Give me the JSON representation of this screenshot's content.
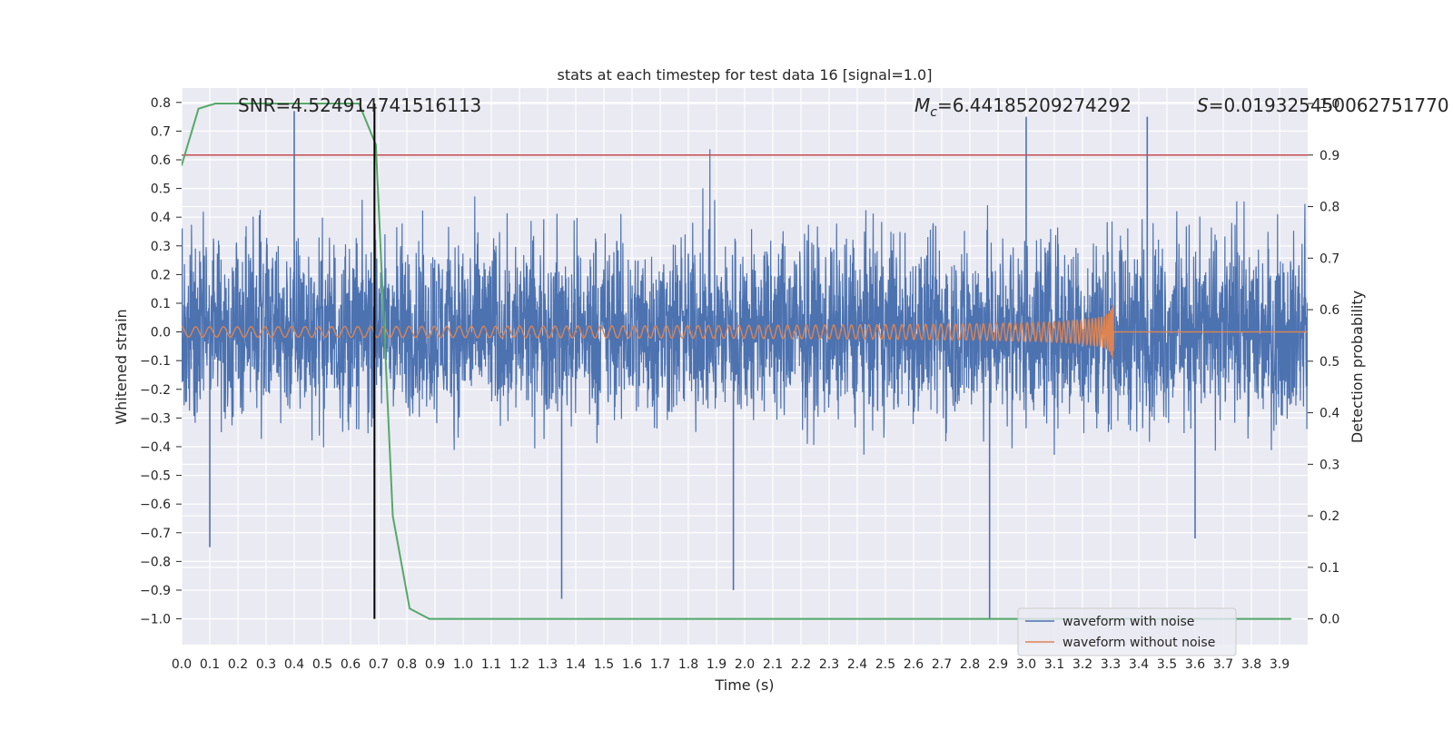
{
  "chart_data": {
    "type": "line",
    "title": "stats at each timestep for test data 16 [signal=1.0]",
    "xlabel": "Time (s)",
    "ylabel_left": "Whitened strain",
    "ylabel_right": "Detection probability",
    "xlim": [
      0.0,
      4.0
    ],
    "ylim_left": [
      -1.09,
      0.85
    ],
    "ylim_right": [
      -0.05,
      1.03
    ],
    "x_ticks": [
      "0.0",
      "0.1",
      "0.2",
      "0.3",
      "0.4",
      "0.5",
      "0.6",
      "0.7",
      "0.8",
      "0.9",
      "1.0",
      "1.1",
      "1.2",
      "1.3",
      "1.4",
      "1.5",
      "1.6",
      "1.7",
      "1.8",
      "1.9",
      "2.0",
      "2.1",
      "2.2",
      "2.3",
      "2.4",
      "2.5",
      "2.6",
      "2.7",
      "2.8",
      "2.9",
      "3.0",
      "3.1",
      "3.2",
      "3.3",
      "3.4",
      "3.5",
      "3.6",
      "3.7",
      "3.8",
      "3.9"
    ],
    "y_ticks_left": [
      "0.8",
      "0.7",
      "0.6",
      "0.5",
      "0.4",
      "0.3",
      "0.2",
      "0.1",
      "0.0",
      "−0.1",
      "−0.2",
      "−0.3",
      "−0.4",
      "−0.5",
      "−0.6",
      "−0.7",
      "−0.8",
      "−0.9",
      "−1.0"
    ],
    "y_ticks_right": [
      "1.0",
      "0.9",
      "0.8",
      "0.7",
      "0.6",
      "0.5",
      "0.4",
      "0.3",
      "0.2",
      "0.1",
      "0.0"
    ],
    "annotations": {
      "snr": "SNR=4.524914741516113",
      "mc_symbol": "M",
      "mc_sub": "c",
      "mc_value": "=6.44185209274292",
      "s_symbol": "S",
      "s_value": "=0.019325450062751770"
    },
    "threshold_probability": 0.9,
    "vertical_marker_time": 0.685,
    "series": [
      {
        "name": "waveform with noise",
        "color": "#4c72b0",
        "kind": "noise",
        "typical_range": [
          -0.45,
          0.5
        ],
        "extremes": [
          {
            "x": 0.1,
            "y": -0.75
          },
          {
            "x": 0.4,
            "y": 0.77
          },
          {
            "x": 1.35,
            "y": -0.93
          },
          {
            "x": 1.96,
            "y": -0.9
          },
          {
            "x": 2.87,
            "y": -1.0
          },
          {
            "x": 3.0,
            "y": 0.75
          },
          {
            "x": 3.6,
            "y": -0.72
          },
          {
            "x": 3.43,
            "y": 0.75
          }
        ]
      },
      {
        "name": "waveform without noise",
        "color": "#dd8452",
        "kind": "chirp",
        "merger_time": 3.31,
        "start_amplitude": 0.018,
        "peak_amplitude": 0.12
      },
      {
        "name": "detection probability",
        "color": "#55a868",
        "axis": "right",
        "x": [
          0.0,
          0.06,
          0.12,
          0.2,
          0.3,
          0.4,
          0.5,
          0.6,
          0.63,
          0.69,
          0.75,
          0.81,
          0.88,
          0.94,
          1.0,
          1.5,
          2.0,
          2.5,
          3.0,
          3.5,
          3.94
        ],
        "y": [
          0.88,
          0.99,
          1.0,
          1.0,
          1.0,
          1.0,
          1.0,
          1.0,
          1.0,
          0.92,
          0.2,
          0.02,
          0.0,
          0.0,
          0.0,
          0.0,
          0.0,
          0.0,
          0.0,
          0.0,
          0.0
        ]
      }
    ],
    "threshold_color": "#c44e52",
    "legend": {
      "placement": "bottom-right",
      "entries": [
        "waveform with noise",
        "waveform without noise"
      ]
    },
    "grid": true
  }
}
